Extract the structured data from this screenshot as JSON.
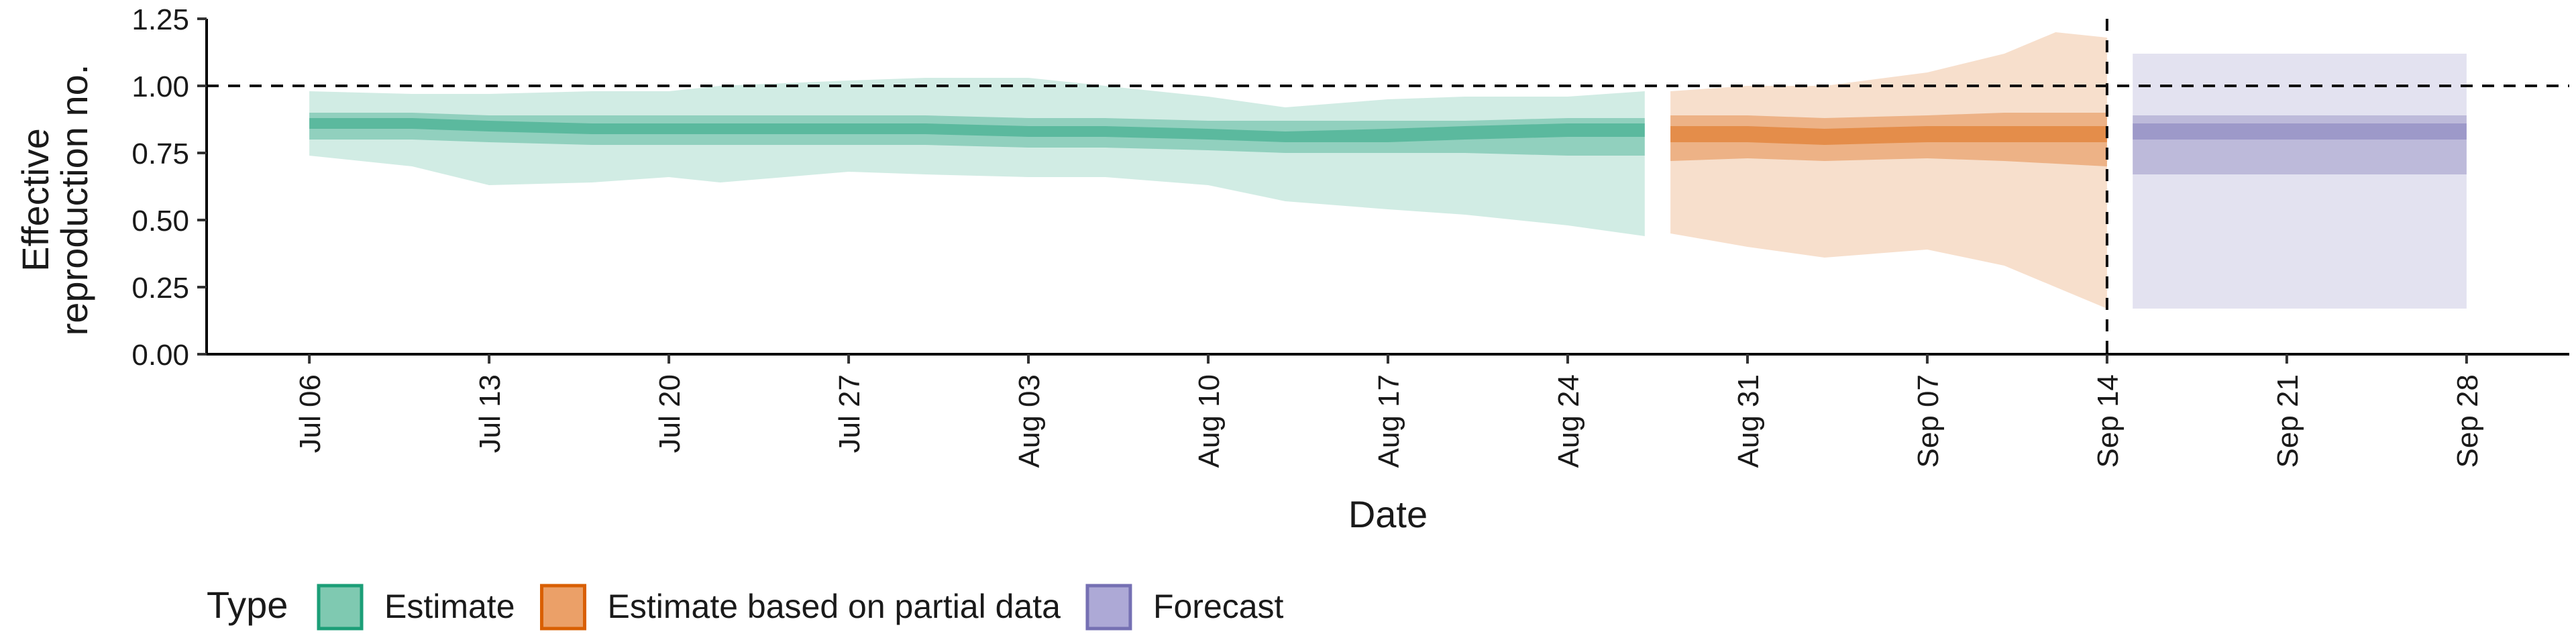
{
  "chart_data": {
    "type": "area",
    "xlabel": "Date",
    "ylabel_lines": [
      "Effective",
      "reproduction no."
    ],
    "ylim": [
      0,
      1.25
    ],
    "y_ticks": [
      "0.00",
      "0.25",
      "0.50",
      "0.75",
      "1.00",
      "1.25"
    ],
    "y_tick_values": [
      0,
      0.25,
      0.5,
      0.75,
      1.0,
      1.25
    ],
    "x_ticks": [
      "Jul 06",
      "Jul 13",
      "Jul 20",
      "Jul 27",
      "Aug 03",
      "Aug 10",
      "Aug 17",
      "Aug 24",
      "Aug 31",
      "Sep 07",
      "Sep 14",
      "Sep 21",
      "Sep 28"
    ],
    "x_tick_dates": [
      "2020-07-06",
      "2020-07-13",
      "2020-07-20",
      "2020-07-27",
      "2020-08-03",
      "2020-08-10",
      "2020-08-17",
      "2020-08-24",
      "2020-08-31",
      "2020-09-07",
      "2020-09-14",
      "2020-09-21",
      "2020-09-28"
    ],
    "xlim": [
      "2020-07-02",
      "2020-10-02"
    ],
    "reference_line": {
      "y": 1.0,
      "style": "dashed"
    },
    "vertical_line": {
      "x": "2020-09-14",
      "style": "dashed"
    },
    "legend": {
      "title": "Type",
      "position": "bottom",
      "items": [
        {
          "label": "Estimate",
          "fill": "#7FC9B1",
          "stroke": "#1B9E77"
        },
        {
          "label": "Estimate based on partial data",
          "fill": "#EBA068",
          "stroke": "#D95F02"
        },
        {
          "label": "Forecast",
          "fill": "#ADA9D6",
          "stroke": "#7570B3"
        }
      ]
    },
    "series": [
      {
        "name": "Estimate",
        "color": "#1B9E77",
        "x": [
          "2020-07-06",
          "2020-07-10",
          "2020-07-13",
          "2020-07-17",
          "2020-07-20",
          "2020-07-22",
          "2020-07-27",
          "2020-07-30",
          "2020-08-03",
          "2020-08-06",
          "2020-08-10",
          "2020-08-13",
          "2020-08-17",
          "2020-08-20",
          "2020-08-24",
          "2020-08-27"
        ],
        "median": [
          0.86,
          0.86,
          0.85,
          0.84,
          0.84,
          0.84,
          0.84,
          0.84,
          0.83,
          0.83,
          0.82,
          0.81,
          0.82,
          0.82,
          0.84,
          0.84
        ],
        "lower_20": [
          0.84,
          0.84,
          0.83,
          0.82,
          0.82,
          0.82,
          0.82,
          0.82,
          0.81,
          0.81,
          0.8,
          0.79,
          0.79,
          0.8,
          0.81,
          0.81
        ],
        "upper_20": [
          0.88,
          0.88,
          0.87,
          0.86,
          0.86,
          0.86,
          0.86,
          0.86,
          0.85,
          0.85,
          0.84,
          0.83,
          0.84,
          0.85,
          0.86,
          0.86
        ],
        "lower_50": [
          0.8,
          0.8,
          0.79,
          0.78,
          0.78,
          0.78,
          0.78,
          0.78,
          0.77,
          0.77,
          0.76,
          0.75,
          0.75,
          0.75,
          0.74,
          0.74
        ],
        "upper_50": [
          0.9,
          0.9,
          0.89,
          0.89,
          0.89,
          0.89,
          0.89,
          0.89,
          0.88,
          0.88,
          0.87,
          0.87,
          0.87,
          0.87,
          0.88,
          0.88
        ],
        "lower_90": [
          0.74,
          0.7,
          0.63,
          0.64,
          0.66,
          0.64,
          0.68,
          0.67,
          0.66,
          0.66,
          0.63,
          0.57,
          0.54,
          0.52,
          0.48,
          0.44
        ],
        "upper_90": [
          0.98,
          0.97,
          0.97,
          0.98,
          0.98,
          1.0,
          1.02,
          1.03,
          1.03,
          1.0,
          0.96,
          0.92,
          0.95,
          0.96,
          0.96,
          0.98
        ]
      },
      {
        "name": "Estimate based on partial data",
        "color": "#D95F02",
        "x": [
          "2020-08-28",
          "2020-08-31",
          "2020-09-03",
          "2020-09-07",
          "2020-09-10",
          "2020-09-12",
          "2020-09-14"
        ],
        "median": [
          0.82,
          0.82,
          0.81,
          0.82,
          0.82,
          0.82,
          0.82
        ],
        "lower_20": [
          0.79,
          0.79,
          0.78,
          0.79,
          0.79,
          0.79,
          0.79
        ],
        "upper_20": [
          0.85,
          0.85,
          0.84,
          0.85,
          0.85,
          0.85,
          0.85
        ],
        "lower_50": [
          0.72,
          0.73,
          0.72,
          0.73,
          0.72,
          0.71,
          0.7
        ],
        "upper_50": [
          0.89,
          0.89,
          0.88,
          0.89,
          0.9,
          0.9,
          0.9
        ],
        "lower_90": [
          0.45,
          0.4,
          0.36,
          0.39,
          0.33,
          0.25,
          0.17
        ],
        "upper_90": [
          0.98,
          1.0,
          1.0,
          1.05,
          1.12,
          1.2,
          1.18
        ]
      },
      {
        "name": "Forecast",
        "color": "#7570B3",
        "x": [
          "2020-09-15",
          "2020-09-28"
        ],
        "median": [
          0.84,
          0.84
        ],
        "lower_20": [
          0.8,
          0.8
        ],
        "upper_20": [
          0.86,
          0.86
        ],
        "lower_50": [
          0.67,
          0.67
        ],
        "upper_50": [
          0.89,
          0.89
        ],
        "lower_90": [
          0.17,
          0.17
        ],
        "upper_90": [
          1.12,
          1.12
        ]
      }
    ]
  }
}
